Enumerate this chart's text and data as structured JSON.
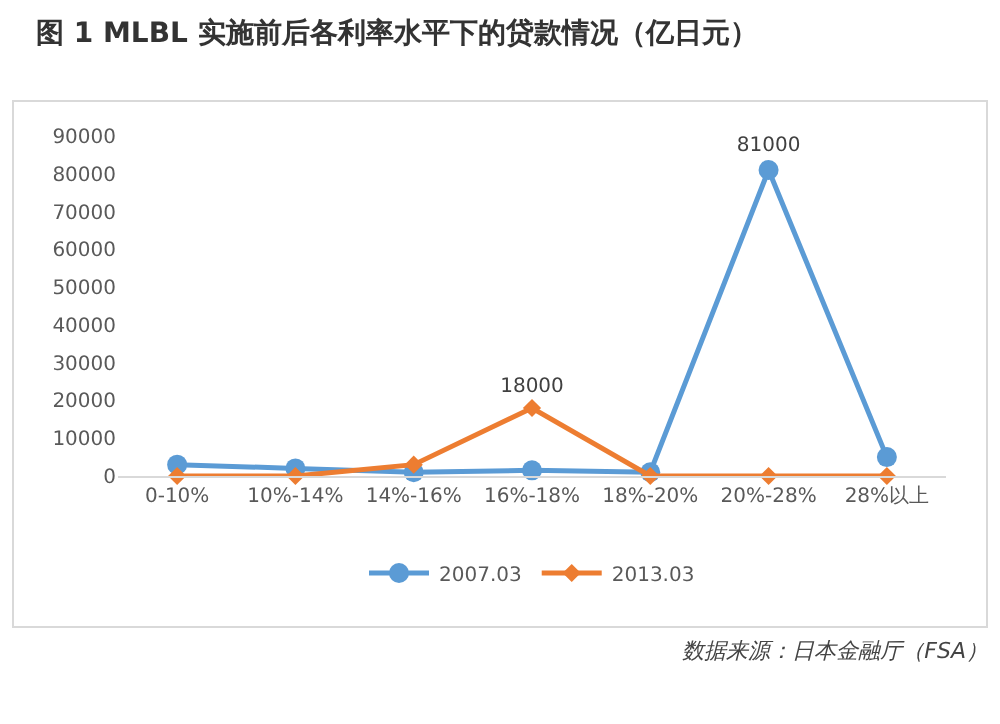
{
  "chart_data": {
    "type": "line",
    "title": "图 1 MLBL 实施前后各利率水平下的贷款情况（亿日元）",
    "categories": [
      "0-10%",
      "10%-14%",
      "14%-16%",
      "16%-18%",
      "18%-20%",
      "20%-28%",
      "28%以上"
    ],
    "series": [
      {
        "name": "2007.03",
        "color": "#5b9bd5",
        "marker": "circle",
        "values": [
          3000,
          2000,
          1000,
          1500,
          1000,
          81000,
          5000
        ],
        "value_labels": [
          null,
          null,
          null,
          null,
          null,
          "81000",
          null
        ]
      },
      {
        "name": "2013.03",
        "color": "#ed7d31",
        "marker": "diamond",
        "values": [
          0,
          0,
          3000,
          18000,
          0,
          0,
          0
        ],
        "value_labels": [
          null,
          null,
          null,
          "18000",
          null,
          null,
          null
        ]
      }
    ],
    "ylim": [
      0,
      90000
    ],
    "yticks": [
      0,
      10000,
      20000,
      30000,
      40000,
      50000,
      60000,
      70000,
      80000,
      90000
    ],
    "grid": false,
    "legend": "bottom",
    "line_style": "solid",
    "annotations": [
      "数据来源：日本金融厅（FSA）"
    ]
  }
}
